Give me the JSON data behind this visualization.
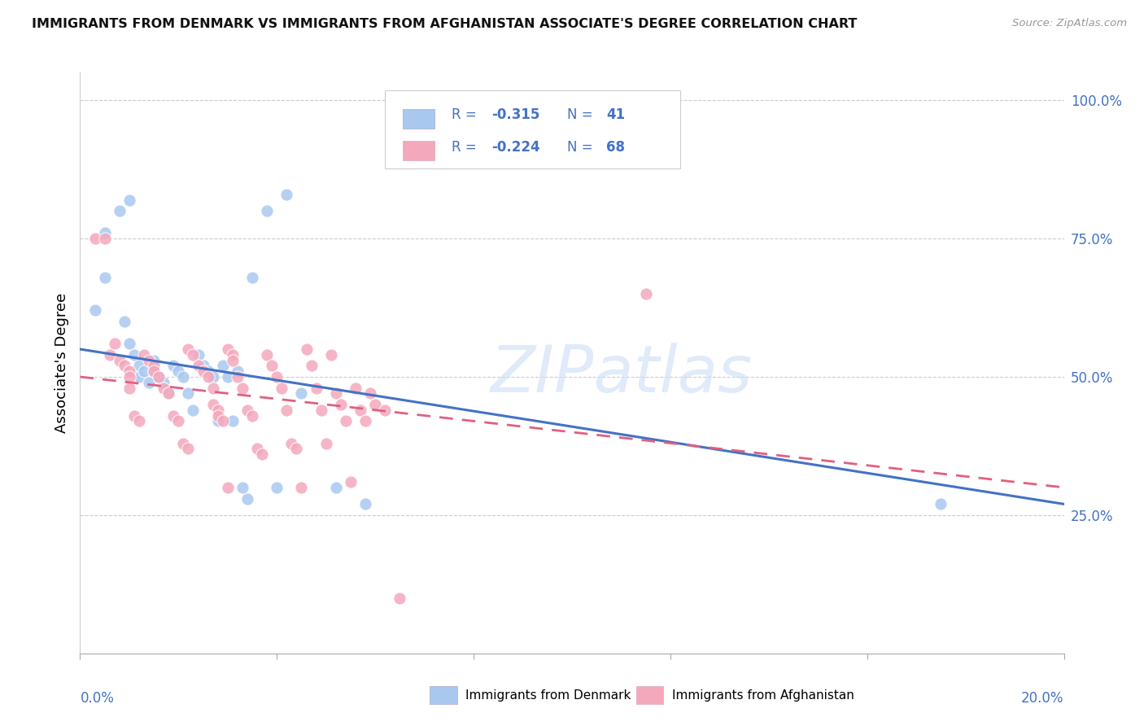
{
  "title": "IMMIGRANTS FROM DENMARK VS IMMIGRANTS FROM AFGHANISTAN ASSOCIATE'S DEGREE CORRELATION CHART",
  "source": "Source: ZipAtlas.com",
  "ylabel": "Associate's Degree",
  "watermark": "ZIPatlas",
  "denmark_color": "#a8c8f0",
  "afghanistan_color": "#f4a8bc",
  "denmark_line_color": "#4472c4",
  "afghanistan_line_color": "#e06080",
  "background_color": "#ffffff",
  "legend_text_color": "#4472c4",
  "denmark_points_x": [
    0.3,
    0.5,
    0.5,
    0.8,
    0.9,
    1.0,
    1.0,
    1.1,
    1.2,
    1.2,
    1.3,
    1.4,
    1.5,
    1.5,
    1.6,
    1.7,
    1.8,
    1.9,
    2.0,
    2.1,
    2.2,
    2.3,
    2.4,
    2.5,
    2.6,
    2.7,
    2.8,
    2.9,
    3.0,
    3.1,
    3.2,
    3.3,
    3.4,
    3.5,
    3.8,
    4.0,
    4.2,
    4.5,
    5.2,
    5.8,
    17.5
  ],
  "denmark_points_y": [
    62,
    76,
    68,
    80,
    60,
    82,
    56,
    54,
    52,
    50,
    51,
    49,
    53,
    51,
    50,
    49,
    47,
    52,
    51,
    50,
    47,
    44,
    54,
    52,
    51,
    50,
    42,
    52,
    50,
    42,
    51,
    30,
    28,
    68,
    80,
    30,
    83,
    47,
    30,
    27,
    27
  ],
  "afghanistan_points_x": [
    0.3,
    0.5,
    0.6,
    0.7,
    0.8,
    0.9,
    1.0,
    1.0,
    1.0,
    1.1,
    1.2,
    1.3,
    1.4,
    1.5,
    1.5,
    1.6,
    1.7,
    1.8,
    1.9,
    2.0,
    2.1,
    2.2,
    2.2,
    2.3,
    2.4,
    2.5,
    2.6,
    2.7,
    2.7,
    2.8,
    2.8,
    2.9,
    3.0,
    3.0,
    3.1,
    3.1,
    3.2,
    3.3,
    3.4,
    3.5,
    3.6,
    3.7,
    3.8,
    3.9,
    4.0,
    4.1,
    4.2,
    4.3,
    4.4,
    4.5,
    4.6,
    4.7,
    4.8,
    4.9,
    5.0,
    5.1,
    5.2,
    5.3,
    5.4,
    5.5,
    5.6,
    5.7,
    5.8,
    5.9,
    6.0,
    6.2,
    6.5,
    11.5
  ],
  "afghanistan_points_y": [
    75,
    75,
    54,
    56,
    53,
    52,
    51,
    50,
    48,
    43,
    42,
    54,
    53,
    52,
    51,
    50,
    48,
    47,
    43,
    42,
    38,
    37,
    55,
    54,
    52,
    51,
    50,
    48,
    45,
    44,
    43,
    42,
    30,
    55,
    54,
    53,
    50,
    48,
    44,
    43,
    37,
    36,
    54,
    52,
    50,
    48,
    44,
    38,
    37,
    30,
    55,
    52,
    48,
    44,
    38,
    54,
    47,
    45,
    42,
    31,
    48,
    44,
    42,
    47,
    45,
    44,
    10,
    65
  ],
  "xlim": [
    0,
    20
  ],
  "ylim": [
    0,
    105
  ],
  "dk_line_x": [
    0,
    20
  ],
  "dk_line_y": [
    55,
    27
  ],
  "af_line_x": [
    0,
    20
  ],
  "af_line_y": [
    50,
    30
  ]
}
